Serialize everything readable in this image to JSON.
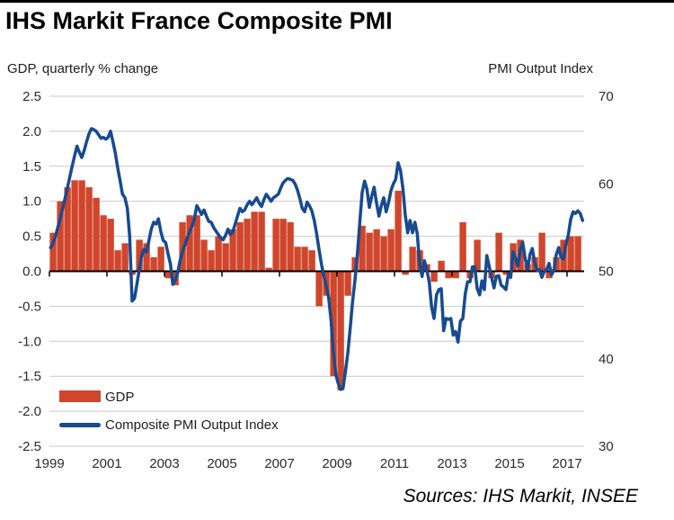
{
  "title": "IHS Markit France Composite PMI",
  "left_axis_header": "GDP, quarterly % change",
  "right_axis_header": "PMI Output  Index",
  "source": "Sources: IHS Markit, INSEE",
  "legend": {
    "gdp_label": "GDP",
    "pmi_label": "Composite PMI Output Index"
  },
  "colors": {
    "gdp_bar": "#CF462C",
    "pmi_line": "#174A90",
    "gridline": "#C9C9C9",
    "axis": "#000000",
    "tick_text": "#2b2b2b"
  },
  "chart_data": {
    "type": "bar+line combo",
    "x_tick_labels": [
      "1999",
      "2001",
      "2003",
      "2005",
      "2007",
      "2009",
      "2011",
      "2013",
      "2015",
      "2017"
    ],
    "left_axis": {
      "title": "GDP, quarterly % change",
      "ticks": [
        "2.5",
        "2.0",
        "1.5",
        "1.0",
        "0.5",
        "0.0",
        "-0.5",
        "-1.0",
        "-1.5",
        "-2.0",
        "-2.5"
      ],
      "range": [
        -2.5,
        2.5
      ]
    },
    "right_axis": {
      "title": "PMI Output Index",
      "ticks": [
        "70",
        "60",
        "50",
        "40",
        "30"
      ],
      "range": [
        30,
        70
      ]
    },
    "grid": "horizontal only",
    "legend_position": "inside bottom-left",
    "series": [
      {
        "name": "GDP",
        "type": "bar",
        "axis": "left",
        "start": "1999Q1",
        "frequency": "quarterly",
        "values": [
          0.55,
          1.0,
          1.2,
          1.3,
          1.3,
          1.2,
          1.05,
          0.8,
          0.75,
          0.3,
          0.4,
          -0.05,
          0.45,
          0.4,
          0.2,
          0.35,
          -0.1,
          -0.2,
          0.7,
          0.8,
          0.8,
          0.45,
          0.3,
          0.5,
          0.4,
          0.6,
          0.7,
          0.75,
          0.85,
          0.85,
          0.05,
          0.75,
          0.75,
          0.7,
          0.35,
          0.35,
          0.3,
          -0.5,
          -0.35,
          -1.5,
          -1.7,
          -0.35,
          0.2,
          0.65,
          0.55,
          0.6,
          0.5,
          0.6,
          1.15,
          -0.05,
          0.35,
          0.3,
          0.1,
          -0.15,
          0.15,
          -0.1,
          -0.1,
          0.7,
          -0.1,
          0.45,
          0.0,
          -0.1,
          0.55,
          -0.05,
          0.4,
          0.45,
          0.1,
          0.2,
          0.55,
          -0.1,
          0.2,
          0.45,
          0.5,
          0.5
        ]
      },
      {
        "name": "Composite PMI Output Index",
        "type": "line",
        "axis": "right",
        "start": "1999-01",
        "frequency": "monthly",
        "values": [
          52.7,
          53.2,
          54.0,
          55.0,
          56.0,
          57.2,
          58.3,
          59.5,
          60.8,
          62.0,
          63.2,
          64.3,
          63.6,
          63.0,
          63.8,
          64.8,
          65.7,
          66.3,
          66.2,
          66.0,
          65.6,
          65.2,
          65.3,
          65.1,
          65.3,
          66.0,
          64.8,
          63.5,
          61.8,
          60.3,
          58.8,
          58.4,
          57.2,
          54.0,
          46.6,
          46.9,
          48.5,
          50.2,
          51.8,
          52.5,
          52.2,
          53.5,
          54.8,
          55.6,
          55.4,
          56.0,
          54.5,
          53.5,
          53.3,
          52.0,
          50.8,
          48.5,
          49.0,
          49.8,
          51.2,
          52.2,
          53.0,
          53.8,
          54.5,
          55.2,
          56.0,
          57.5,
          57.0,
          56.5,
          57.0,
          56.3,
          55.7,
          55.6,
          55.0,
          54.6,
          54.2,
          53.8,
          53.6,
          54.1,
          54.8,
          54.2,
          54.5,
          55.4,
          56.3,
          57.2,
          56.8,
          57.0,
          57.6,
          58.0,
          57.6,
          58.0,
          58.4,
          57.8,
          57.4,
          58.2,
          58.8,
          58.4,
          58.0,
          58.4,
          58.6,
          58.8,
          59.5,
          60.1,
          60.4,
          60.6,
          60.5,
          60.4,
          60.0,
          59.3,
          58.3,
          57.2,
          56.8,
          57.9,
          57.5,
          56.9,
          55.8,
          54.3,
          52.5,
          50.8,
          49.5,
          48.3,
          47.0,
          44.5,
          40.8,
          38.2,
          37.2,
          36.5,
          36.6,
          38.5,
          40.6,
          43.5,
          46.5,
          49.0,
          52.0,
          55.5,
          59.0,
          60.3,
          59.4,
          57.3,
          58.6,
          59.6,
          57.8,
          56.3,
          57.5,
          58.4,
          56.8,
          57.8,
          59.2,
          60.0,
          60.5,
          62.4,
          61.5,
          59.5,
          56.4,
          54.4,
          55.8,
          54.4,
          55.6,
          54.3,
          50.8,
          49.4,
          51.2,
          50.2,
          48.7,
          45.9,
          44.6,
          47.3,
          47.9,
          48.0,
          43.2,
          44.6,
          44.5,
          44.6,
          42.7,
          43.1,
          41.9,
          44.3,
          44.6,
          47.4,
          48.8,
          48.8,
          50.5,
          50.5,
          48.0,
          47.3,
          48.9,
          47.9,
          51.8,
          50.6,
          49.3,
          48.1,
          49.4,
          49.5,
          48.4,
          48.2,
          47.9,
          49.7,
          49.3,
          52.2,
          51.5,
          50.6,
          52.5,
          53.3,
          51.5,
          50.2,
          51.9,
          52.6,
          51.0,
          50.1,
          50.2,
          49.3,
          50.0,
          50.2,
          50.9,
          49.6,
          50.1,
          51.9,
          52.7,
          51.6,
          51.4,
          53.1,
          54.1,
          55.9,
          56.8,
          56.6,
          56.9,
          56.6,
          55.8
        ]
      }
    ]
  }
}
